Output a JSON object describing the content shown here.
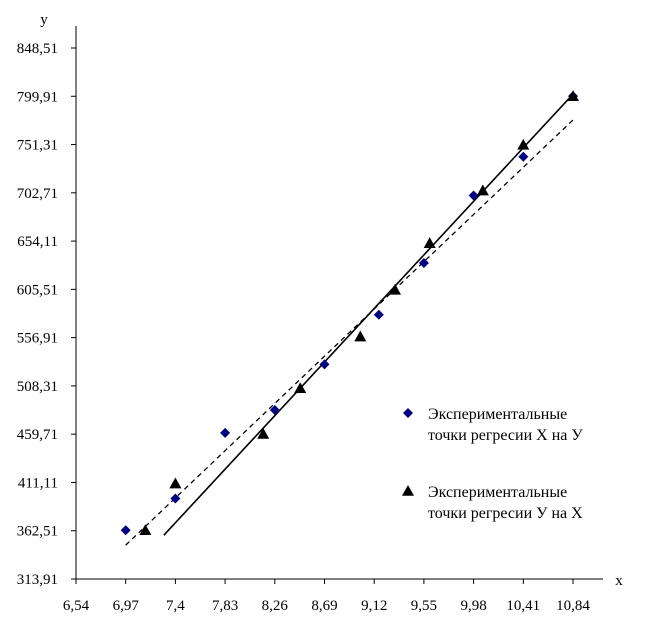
{
  "chart_data": {
    "type": "scatter",
    "title": "",
    "xlabel": "x",
    "ylabel": "y",
    "xlim": [
      6.54,
      10.84
    ],
    "ylim": [
      313.91,
      848.51
    ],
    "x_ticks": [
      "6,54",
      "6,97",
      "7,4",
      "7,83",
      "8,26",
      "8,69",
      "9,12",
      "9,55",
      "9,98",
      "10,41",
      "10,84"
    ],
    "x_tick_values": [
      6.54,
      6.97,
      7.4,
      7.83,
      8.26,
      8.69,
      9.12,
      9.55,
      9.98,
      10.41,
      10.84
    ],
    "y_ticks": [
      "313,91",
      "362,51",
      "411,11",
      "459,71",
      "508,31",
      "556,91",
      "605,51",
      "654,11",
      "702,71",
      "751,31",
      "799,91",
      "848,51"
    ],
    "y_tick_values": [
      313.91,
      362.51,
      411.11,
      459.71,
      508.31,
      556.91,
      605.51,
      654.11,
      702.71,
      751.31,
      799.91,
      848.51
    ],
    "legend_position": "right",
    "series": [
      {
        "name": "Экспериментальные точки регресии X на У",
        "marker": "diamond",
        "color": "#000080",
        "points": [
          {
            "x": 6.97,
            "y": 363
          },
          {
            "x": 7.4,
            "y": 395
          },
          {
            "x": 7.83,
            "y": 461
          },
          {
            "x": 8.26,
            "y": 484
          },
          {
            "x": 8.69,
            "y": 530
          },
          {
            "x": 9.16,
            "y": 580
          },
          {
            "x": 9.55,
            "y": 632
          },
          {
            "x": 9.98,
            "y": 700
          },
          {
            "x": 10.41,
            "y": 739
          },
          {
            "x": 10.84,
            "y": 800
          }
        ]
      },
      {
        "name": "Экспериментальные точки регресии У на X",
        "marker": "triangle",
        "color": "#000000",
        "points": [
          {
            "x": 7.14,
            "y": 363
          },
          {
            "x": 7.4,
            "y": 410
          },
          {
            "x": 8.16,
            "y": 460
          },
          {
            "x": 8.48,
            "y": 506
          },
          {
            "x": 9.0,
            "y": 558
          },
          {
            "x": 9.3,
            "y": 605
          },
          {
            "x": 9.6,
            "y": 652
          },
          {
            "x": 10.06,
            "y": 705
          },
          {
            "x": 10.41,
            "y": 751
          },
          {
            "x": 10.84,
            "y": 800
          }
        ]
      }
    ],
    "lines": [
      {
        "style": "solid",
        "color": "#000000",
        "points": [
          {
            "x": 7.3,
            "y": 358
          },
          {
            "x": 10.84,
            "y": 802
          }
        ]
      },
      {
        "style": "dashed",
        "color": "#000000",
        "points": [
          {
            "x": 6.97,
            "y": 348
          },
          {
            "x": 10.84,
            "y": 776
          }
        ]
      }
    ]
  }
}
